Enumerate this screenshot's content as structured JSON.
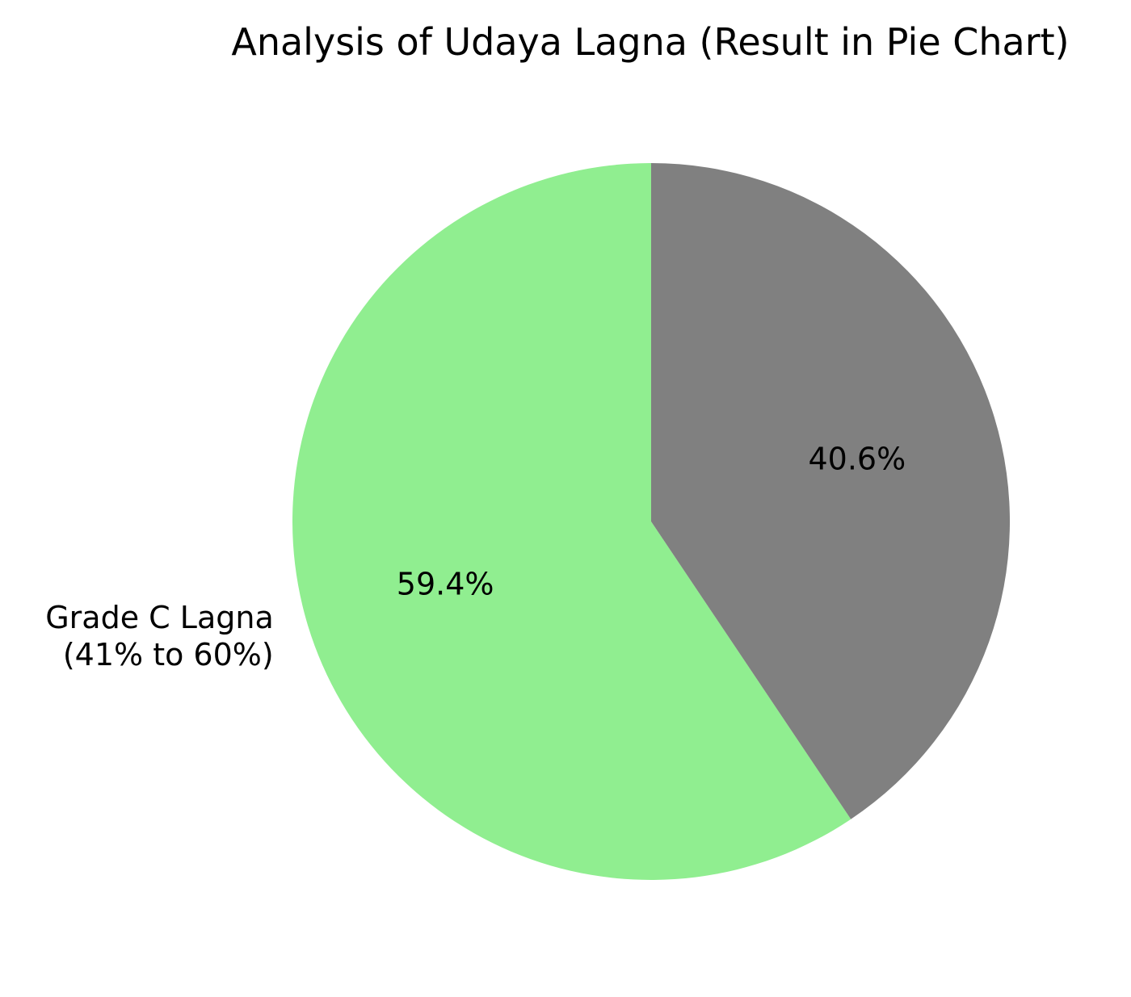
{
  "chart_data": {
    "type": "pie",
    "title": "Analysis of Udaya Lagna (Result in Pie Chart)",
    "slices": [
      {
        "label_lines": [
          "Grade C Lagna",
          "(41% to 60%)"
        ],
        "value": 59.4,
        "pct_label": "59.4%",
        "color": "#90EE90"
      },
      {
        "label_lines": [],
        "value": 40.6,
        "pct_label": "40.6%",
        "color": "#808080"
      }
    ],
    "start_angle": "top",
    "direction": "counterclockwise",
    "legend": "none"
  }
}
